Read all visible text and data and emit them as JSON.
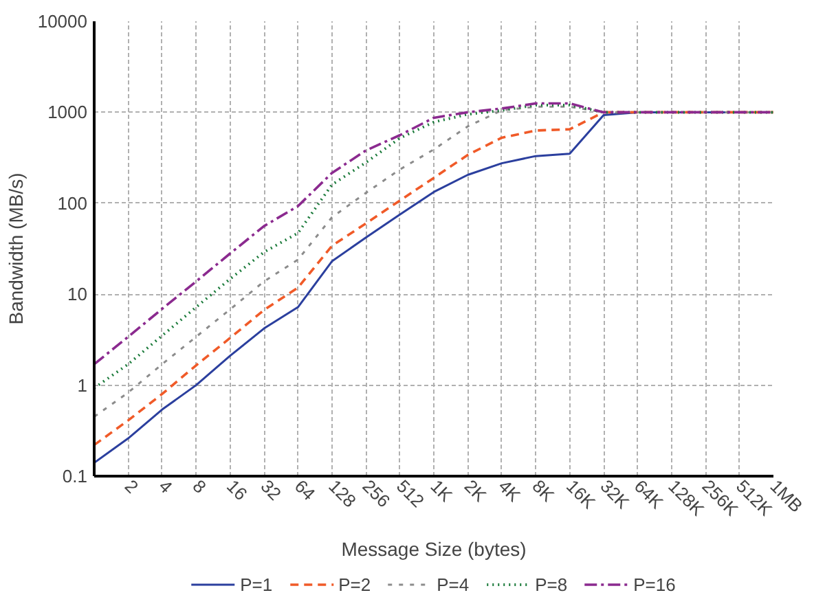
{
  "chart_data": {
    "type": "line",
    "xlabel": "Message Size (bytes)",
    "ylabel": "Bandwidth (MB/s)",
    "categories": [
      null,
      "2",
      "4",
      "8",
      "16",
      "32",
      "64",
      "128",
      "256",
      "512",
      "1K",
      "2K",
      "4K",
      "8K",
      "16K",
      "32K",
      "64K",
      "128K",
      "256K",
      "512K",
      "1MB"
    ],
    "log": "y",
    "ylim": [
      0.1,
      10000
    ],
    "yticks": [
      0.1,
      1,
      10,
      100,
      1000,
      10000
    ],
    "grid": true,
    "legend": "bottom",
    "marker": "none",
    "series": [
      {
        "name": "P=1",
        "color": "#2b3f9e",
        "line_style": "solid",
        "values": [
          0.14,
          0.26,
          0.54,
          1.0,
          2.1,
          4.2,
          7.2,
          23,
          42,
          75,
          133,
          205,
          275,
          330,
          350,
          930,
          1000,
          1000,
          1000,
          1000,
          1000
        ]
      },
      {
        "name": "P=2",
        "color": "#f05a28",
        "line_style": "dashed",
        "values": [
          0.22,
          0.41,
          0.8,
          1.65,
          3.3,
          6.7,
          11.8,
          34,
          60,
          107,
          190,
          340,
          525,
          630,
          650,
          1000,
          1000,
          1000,
          1000,
          1000,
          1000
        ]
      },
      {
        "name": "P=4",
        "color": "#8c8c8c",
        "line_style": "loosely dashed",
        "values": [
          0.45,
          0.83,
          1.7,
          3.4,
          6.8,
          13.8,
          24,
          70,
          130,
          235,
          390,
          700,
          1050,
          1150,
          1150,
          1000,
          1000,
          1000,
          1000,
          1000,
          1000
        ]
      },
      {
        "name": "P=8",
        "color": "#1a7a3a",
        "line_style": "dotted",
        "values": [
          0.93,
          1.7,
          3.5,
          7.2,
          14.7,
          29,
          47,
          160,
          280,
          520,
          780,
          950,
          1050,
          1200,
          1200,
          1000,
          1000,
          1000,
          1000,
          1000,
          1000
        ]
      },
      {
        "name": "P=16",
        "color": "#8b2a8f",
        "line_style": "dashdot",
        "values": [
          1.7,
          3.4,
          6.9,
          13.8,
          28,
          56,
          93,
          215,
          380,
          560,
          870,
          1000,
          1100,
          1250,
          1250,
          1000,
          1000,
          1000,
          1000,
          1000,
          1000
        ]
      }
    ]
  }
}
